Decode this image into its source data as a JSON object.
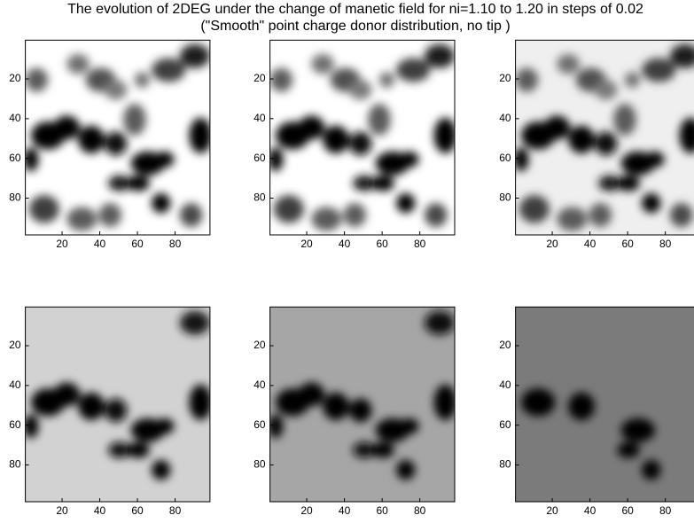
{
  "title": "The evolution of 2DEG under the change of manetic field for ni=1.10 to 1.20 in steps of 0.02",
  "subtitle": "(\"Smooth\" point charge donor distribution, no tip )",
  "chart_data": [
    {
      "type": "heatmap",
      "xlim": [
        0.5,
        98.5
      ],
      "ylim": [
        0.5,
        98.5
      ],
      "xticks": [
        20,
        40,
        60,
        80
      ],
      "yticks": [
        20,
        40,
        60,
        80
      ]
    },
    {
      "type": "heatmap",
      "xlim": [
        0.5,
        98.5
      ],
      "ylim": [
        0.5,
        98.5
      ],
      "xticks": [
        20,
        40,
        60,
        80
      ],
      "yticks": [
        20,
        40,
        60,
        80
      ]
    },
    {
      "type": "heatmap",
      "xlim": [
        0.5,
        98.5
      ],
      "ylim": [
        0.5,
        98.5
      ],
      "xticks": [
        20,
        40,
        60,
        80
      ],
      "yticks": [
        20,
        40,
        60,
        80
      ]
    },
    {
      "type": "heatmap",
      "xlim": [
        0.5,
        98.5
      ],
      "ylim": [
        0.5,
        98.5
      ],
      "xticks": [
        20,
        40,
        60,
        80
      ],
      "yticks": [
        20,
        40,
        60,
        80
      ]
    },
    {
      "type": "heatmap",
      "xlim": [
        0.5,
        98.5
      ],
      "ylim": [
        0.5,
        98.5
      ],
      "xticks": [
        20,
        40,
        60,
        80
      ],
      "yticks": [
        20,
        40,
        60,
        80
      ]
    },
    {
      "type": "heatmap",
      "xlim": [
        0.5,
        98.5
      ],
      "ylim": [
        0.5,
        98.5
      ],
      "xticks": [
        20,
        40,
        60,
        80
      ],
      "yticks": [
        20,
        40,
        60,
        80
      ]
    }
  ]
}
